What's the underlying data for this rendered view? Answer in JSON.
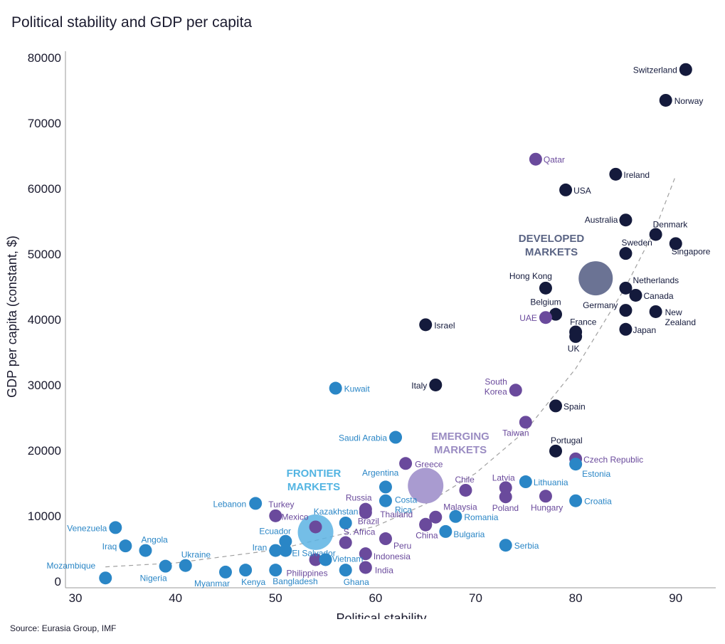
{
  "title": "Political stability and GDP per capita",
  "source": "Source: Eurasia Group, IMF",
  "colors": {
    "developed": "#141a3c",
    "emerging": "#6a4a9c",
    "frontier": "#2a86c6",
    "developed_label": "#5a6484",
    "emerging_label": "#9a8cc2",
    "frontier_label": "#52b4e2"
  },
  "chart_data": {
    "type": "scatter",
    "title": "Political stability and GDP per capita",
    "xlabel": "Political stability",
    "ylabel": "GDP per capita (constant, $)",
    "xlim": [
      29,
      94
    ],
    "ylim": [
      -1000,
      81000
    ],
    "xticks": [
      30,
      40,
      50,
      60,
      70,
      80,
      90
    ],
    "yticks": [
      0,
      10000,
      20000,
      30000,
      40000,
      50000,
      60000,
      70000,
      80000
    ],
    "grid": false,
    "trend_line": "dashed exponential",
    "trend_points": [
      [
        33,
        2200
      ],
      [
        40,
        2800
      ],
      [
        50,
        4800
      ],
      [
        60,
        8400
      ],
      [
        65,
        11800
      ],
      [
        70,
        16500
      ],
      [
        75,
        23000
      ],
      [
        80,
        32500
      ],
      [
        85,
        45000
      ],
      [
        88,
        54000
      ],
      [
        90,
        62000
      ]
    ],
    "group_labels": [
      {
        "lines": [
          "DEVELOPED",
          "MARKETS"
        ],
        "group": "developed"
      },
      {
        "lines": [
          "EMERGING",
          "MARKETS"
        ],
        "group": "emerging"
      },
      {
        "lines": [
          "FRONTIER",
          "MARKETS"
        ],
        "group": "frontier"
      }
    ],
    "group_averages": [
      {
        "group": "developed",
        "x": 82,
        "y": 46300
      },
      {
        "group": "emerging",
        "x": 65,
        "y": 14600
      },
      {
        "group": "frontier",
        "x": 54,
        "y": 7500
      }
    ],
    "series": [
      {
        "name": "Developed markets",
        "group": "developed",
        "points": [
          {
            "label": "Switzerland",
            "x": 91,
            "y": 78200
          },
          {
            "label": "Norway",
            "x": 89,
            "y": 73500
          },
          {
            "label": "Ireland",
            "x": 84,
            "y": 62200
          },
          {
            "label": "USA",
            "x": 79,
            "y": 59800
          },
          {
            "label": "Australia",
            "x": 85,
            "y": 55200
          },
          {
            "label": "Denmark",
            "x": 88,
            "y": 53000
          },
          {
            "label": "Singapore",
            "x": 90,
            "y": 51600
          },
          {
            "label": "Sweden",
            "x": 85,
            "y": 50100
          },
          {
            "label": "Hong Kong",
            "x": 77,
            "y": 44800
          },
          {
            "label": "Netherlands",
            "x": 85,
            "y": 44800
          },
          {
            "label": "Canada",
            "x": 86,
            "y": 43700
          },
          {
            "label": "Belgium",
            "x": 78,
            "y": 40800
          },
          {
            "label": "Germany",
            "x": 85,
            "y": 41400
          },
          {
            "label": "New Zealand",
            "x": 88,
            "y": 41200
          },
          {
            "label": "France",
            "x": 80,
            "y": 38100
          },
          {
            "label": "UK",
            "x": 80,
            "y": 37400
          },
          {
            "label": "Japan",
            "x": 85,
            "y": 38500
          },
          {
            "label": "Israel",
            "x": 65,
            "y": 39200
          },
          {
            "label": "Italy",
            "x": 66,
            "y": 30000
          },
          {
            "label": "Spain",
            "x": 78,
            "y": 26800
          },
          {
            "label": "Portugal",
            "x": 78,
            "y": 19900
          }
        ]
      },
      {
        "name": "Emerging markets",
        "group": "emerging",
        "points": [
          {
            "label": "Qatar",
            "x": 76,
            "y": 64500
          },
          {
            "label": "UAE",
            "x": 77,
            "y": 40300
          },
          {
            "label": "South Korea",
            "x": 74,
            "y": 29200
          },
          {
            "label": "Taiwan",
            "x": 75,
            "y": 24300
          },
          {
            "label": "Czech Republic",
            "x": 80,
            "y": 18700
          },
          {
            "label": "Greece",
            "x": 63,
            "y": 18000
          },
          {
            "label": "Chile",
            "x": 69,
            "y": 13900
          },
          {
            "label": "Latvia",
            "x": 73,
            "y": 14300
          },
          {
            "label": "Poland",
            "x": 73,
            "y": 12900
          },
          {
            "label": "Hungary",
            "x": 77,
            "y": 13000
          },
          {
            "label": "Turkey",
            "x": 50,
            "y": 10000
          },
          {
            "label": "Russia",
            "x": 59,
            "y": 11000
          },
          {
            "label": "Brazil",
            "x": 59,
            "y": 10500
          },
          {
            "label": "Malaysia",
            "x": 66,
            "y": 9800
          },
          {
            "label": "Mexico",
            "x": 54,
            "y": 8300
          },
          {
            "label": "Thailand",
            "x": 65,
            "y": 8700
          },
          {
            "label": "China",
            "x": 65,
            "y": 8600
          },
          {
            "label": "S. Africa",
            "x": 57,
            "y": 5900
          },
          {
            "label": "Peru",
            "x": 61,
            "y": 6500
          },
          {
            "label": "Indonesia",
            "x": 59,
            "y": 4200
          },
          {
            "label": "Philippines",
            "x": 54,
            "y": 3300
          },
          {
            "label": "India",
            "x": 59,
            "y": 2100
          }
        ]
      },
      {
        "name": "Frontier markets",
        "group": "frontier",
        "points": [
          {
            "label": "Kuwait",
            "x": 56,
            "y": 29500
          },
          {
            "label": "Saudi Arabia",
            "x": 62,
            "y": 22000
          },
          {
            "label": "Estonia",
            "x": 80,
            "y": 17900
          },
          {
            "label": "Lithuania",
            "x": 75,
            "y": 15200
          },
          {
            "label": "Argentina",
            "x": 61,
            "y": 14400
          },
          {
            "label": "Costa Rica",
            "x": 61,
            "y": 12300
          },
          {
            "label": "Croatia",
            "x": 80,
            "y": 12300
          },
          {
            "label": "Lebanon",
            "x": 48,
            "y": 11900
          },
          {
            "label": "Romania",
            "x": 68,
            "y": 9900
          },
          {
            "label": "Kazakhstan",
            "x": 57,
            "y": 8900
          },
          {
            "label": "Bulgaria",
            "x": 67,
            "y": 7600
          },
          {
            "label": "Venezuela",
            "x": 34,
            "y": 8200
          },
          {
            "label": "Ecuador",
            "x": 51,
            "y": 6100
          },
          {
            "label": "El Salvador",
            "x": 51,
            "y": 4700
          },
          {
            "label": "Iran",
            "x": 50,
            "y": 4700
          },
          {
            "label": "Serbia",
            "x": 73,
            "y": 5500
          },
          {
            "label": "Iraq",
            "x": 35,
            "y": 5400
          },
          {
            "label": "Angola",
            "x": 37,
            "y": 4700
          },
          {
            "label": "Vietnam",
            "x": 55,
            "y": 3300
          },
          {
            "label": "Ukraine",
            "x": 41,
            "y": 2400
          },
          {
            "label": "Nigeria",
            "x": 39,
            "y": 2300
          },
          {
            "label": "Kenya",
            "x": 47,
            "y": 1700
          },
          {
            "label": "Bangladesh",
            "x": 50,
            "y": 1700
          },
          {
            "label": "Ghana",
            "x": 57,
            "y": 1700
          },
          {
            "label": "Myanmar",
            "x": 45,
            "y": 1400
          },
          {
            "label": "Mozambique",
            "x": 33,
            "y": 500
          }
        ]
      }
    ]
  }
}
